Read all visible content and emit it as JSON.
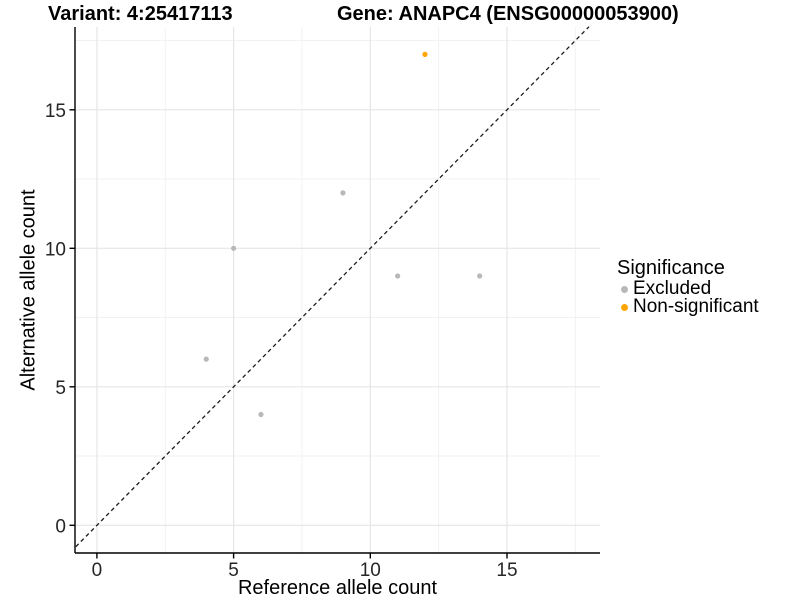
{
  "header": {
    "title_left": "Variant: 4:25417113",
    "title_right": "Gene: ANAPC4 (ENSG00000053900)"
  },
  "chart_data": {
    "type": "scatter",
    "title": "Variant: 4:25417113  /  Gene: ANAPC4 (ENSG00000053900)",
    "xlabel": "Reference allele count",
    "ylabel": "Alternative allele count",
    "xlim": [
      -0.8,
      18.4
    ],
    "ylim": [
      -1.0,
      18.0
    ],
    "x_ticks": [
      0,
      5,
      10,
      15
    ],
    "x_tick_labels": [
      "0",
      "5",
      "10",
      "15"
    ],
    "y_ticks": [
      0,
      5,
      10,
      15
    ],
    "y_tick_labels": [
      "0",
      "5",
      "10",
      "15"
    ],
    "x_minor_ticks": [
      2.5,
      7.5,
      12.5,
      17.5
    ],
    "y_minor_ticks": [
      2.5,
      7.5,
      12.5,
      17.5
    ],
    "grid": "major-and-minor",
    "identity_line": {
      "slope": 1,
      "intercept": 0,
      "style": "dashed",
      "from": -0.77,
      "to": 18.0
    },
    "series": [
      {
        "name": "Excluded",
        "color": "#B8B8B8",
        "points": [
          [
            4,
            6
          ],
          [
            5,
            10
          ],
          [
            6,
            4
          ],
          [
            9,
            12
          ],
          [
            11,
            9
          ],
          [
            14,
            9
          ]
        ]
      },
      {
        "name": "Non-significant",
        "color": "#FFA500",
        "points": [
          [
            12,
            17
          ]
        ]
      }
    ],
    "legend": {
      "title": "Significance",
      "position": "right"
    }
  },
  "legend": {
    "title": "Significance",
    "items": [
      {
        "label": "Excluded",
        "color": "#B8B8B8"
      },
      {
        "label": "Non-significant",
        "color": "#FFA500"
      }
    ]
  },
  "style": {
    "grid_major_color": "#E6E6E6",
    "grid_minor_color": "#F2F2F2",
    "axis_color": "#000000",
    "tick_label_color": "#262626",
    "identity_line_color": "#1A1A1A",
    "background": "#FFFFFF"
  }
}
